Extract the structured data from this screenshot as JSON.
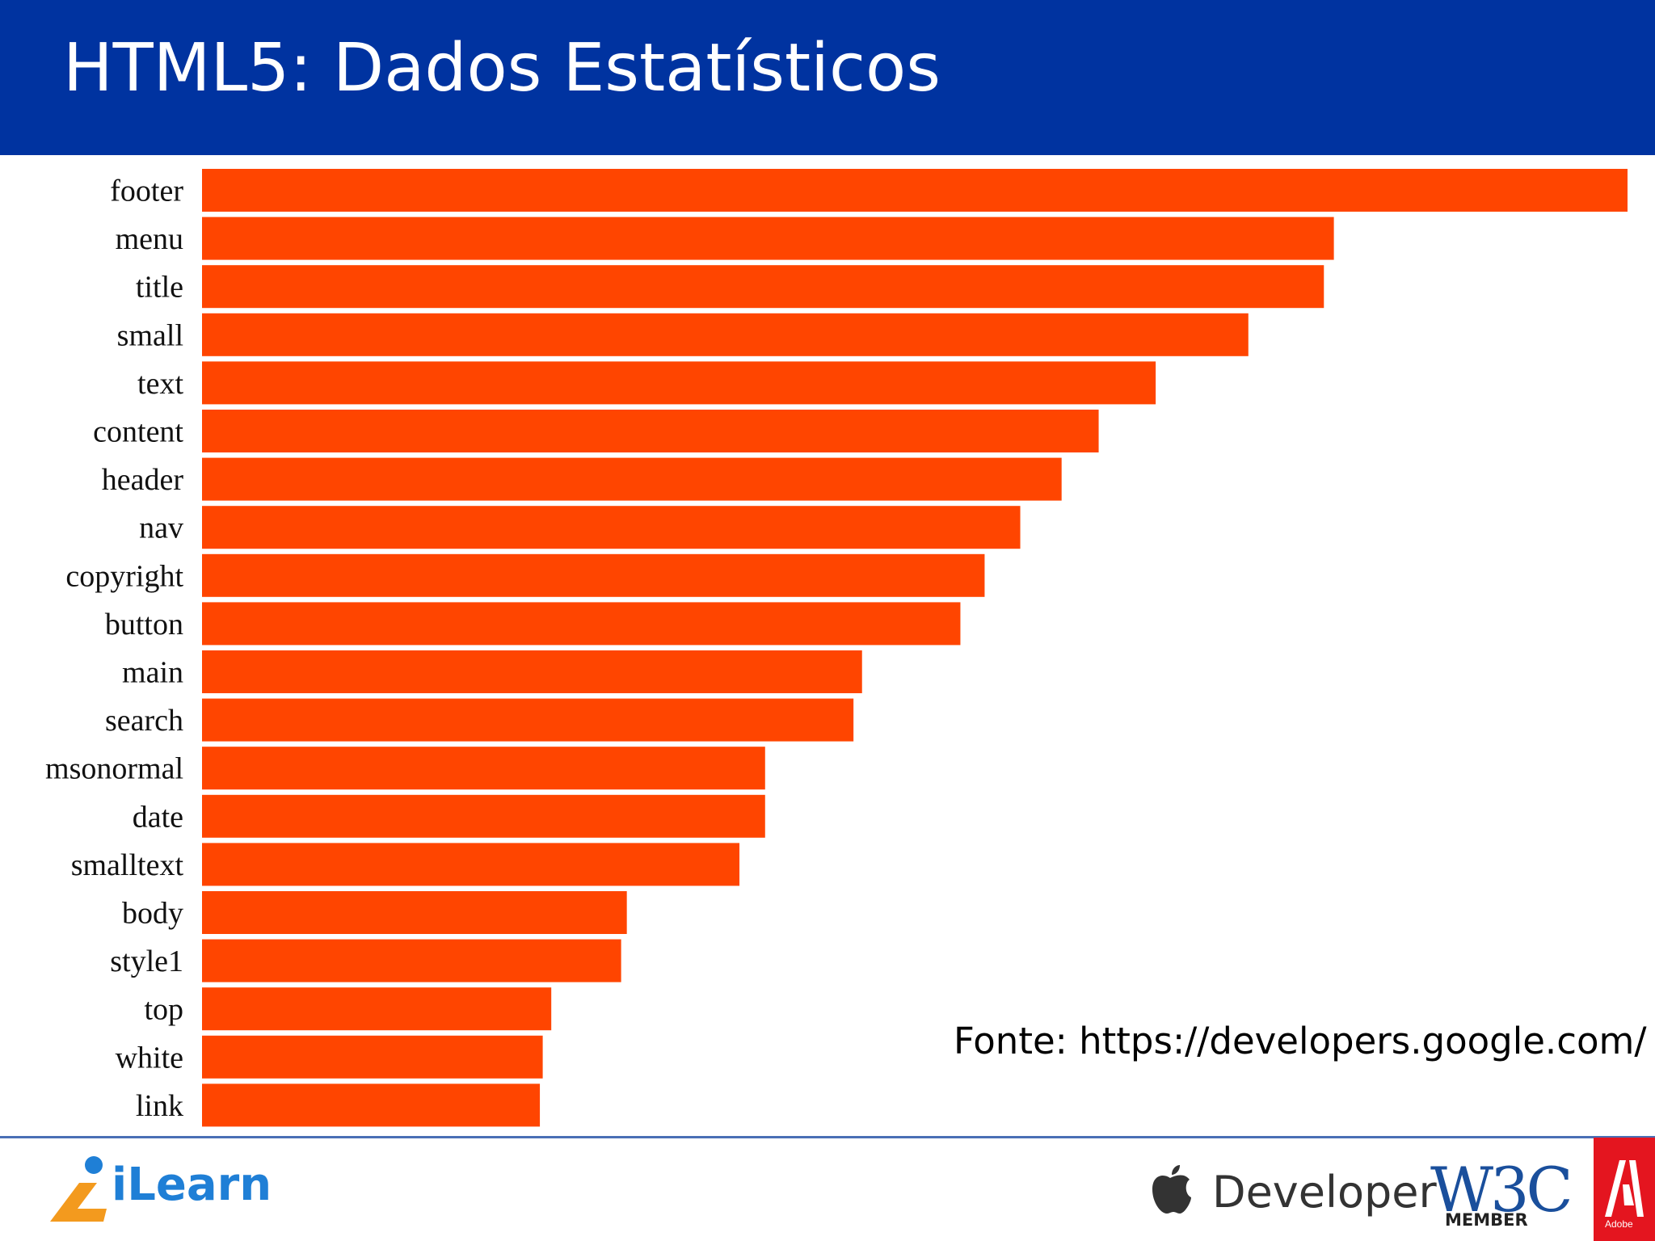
{
  "slide": {
    "title": "HTML5: Dados Estatísticos",
    "source": "Fonte: https://developers.google.com/"
  },
  "colors": {
    "header_bg": "#0033a0",
    "bar": "#ff4500",
    "rule": "#4a6fb5",
    "adobe_red": "#e4151f"
  },
  "logos": {
    "ilearn": "iLearn",
    "apple_developer": "Developer",
    "w3c": "W3C",
    "w3c_member": "MEMBER",
    "adobe": "Adobe"
  },
  "chart_data": {
    "type": "bar",
    "orientation": "horizontal",
    "categories": [
      "footer",
      "menu",
      "title",
      "small",
      "text",
      "content",
      "header",
      "nav",
      "copyright",
      "button",
      "main",
      "search",
      "msonormal",
      "date",
      "smalltext",
      "body",
      "style1",
      "top",
      "white",
      "link"
    ],
    "values": [
      100,
      79.4,
      78.7,
      73.4,
      66.9,
      62.9,
      60.3,
      57.4,
      54.9,
      53.2,
      46.3,
      45.7,
      39.5,
      39.5,
      37.7,
      29.8,
      29.4,
      24.5,
      23.9,
      23.7
    ],
    "xlim": [
      0,
      100
    ],
    "grid": false,
    "legend": "none"
  }
}
